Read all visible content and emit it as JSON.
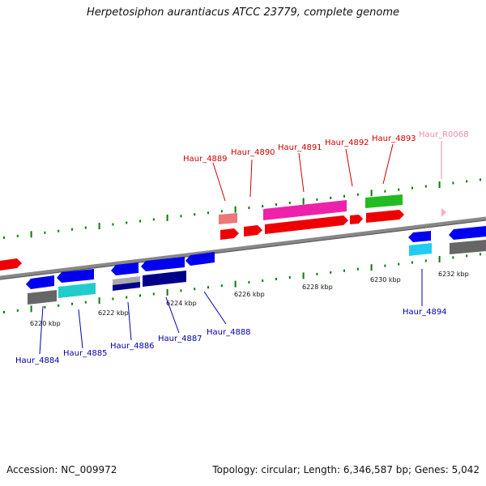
{
  "title": "Herpetosiphon aurantiacus ATCC 23779, complete genome",
  "accession": "Accession: NC_009972",
  "summary": "Topology: circular; Length: 6,346,587 bp; Genes: 5,042",
  "colors": {
    "forward_label": "#cc0000",
    "reverse_label": "#0000aa",
    "rna_label": "#ee88aa",
    "backbone": "#888888",
    "tick": "#0a7a0a"
  },
  "scale_labels": [
    "6220 kbp",
    "6222 kbp",
    "6224 kbp",
    "6226 kbp",
    "6228 kbp",
    "6230 kbp",
    "6232 kbp"
  ],
  "genes_forward": [
    "Haur_4889",
    "Haur_4890",
    "Haur_4891",
    "Haur_4892",
    "Haur_4893"
  ],
  "genes_rna": [
    "Haur_R0068"
  ],
  "genes_reverse": [
    "Haur_4884",
    "Haur_4885",
    "Haur_4886",
    "Haur_4887",
    "Haur_4888",
    "Haur_4894"
  ]
}
